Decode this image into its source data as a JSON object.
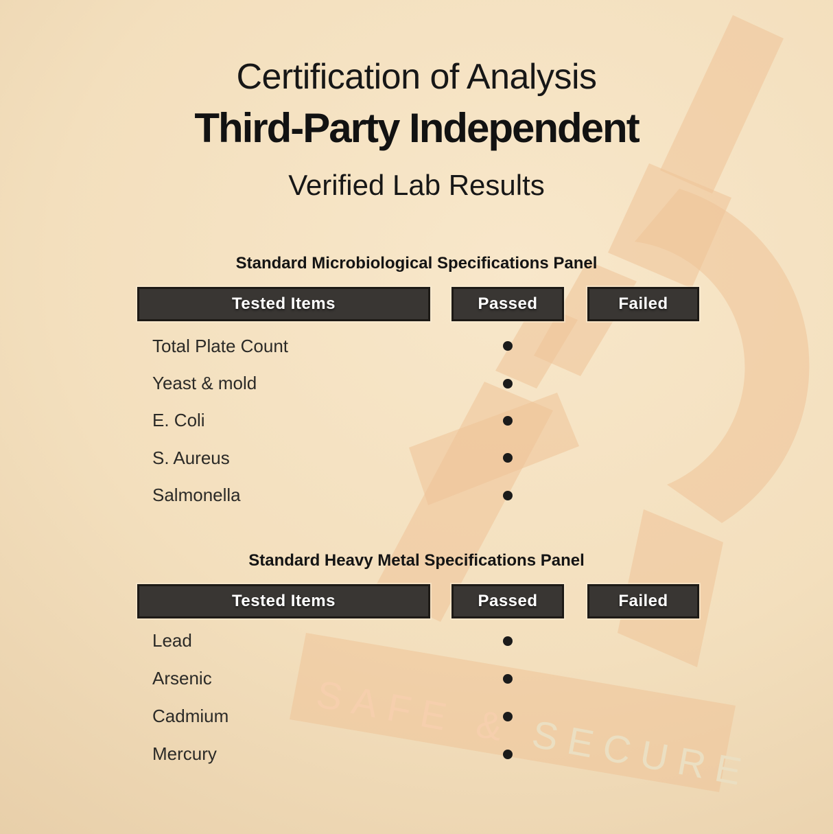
{
  "header": {
    "title": "Certification of Analysis",
    "subtitle": "Third-Party Independent",
    "tagline": "Verified Lab Results"
  },
  "tables": [
    {
      "section_title": "Standard Microbiological Specifications Panel",
      "columns": [
        "Tested Items",
        "Passed",
        "Failed"
      ],
      "rows": [
        {
          "item": "Total Plate Count",
          "passed": true,
          "failed": false
        },
        {
          "item": "Yeast & mold",
          "passed": true,
          "failed": false
        },
        {
          "item": "E. Coli",
          "passed": true,
          "failed": false
        },
        {
          "item": "S. Aureus",
          "passed": true,
          "failed": false
        },
        {
          "item": "Salmonella",
          "passed": true,
          "failed": false
        }
      ]
    },
    {
      "section_title": "Standard Heavy Metal Specifications Panel",
      "columns": [
        "Tested Items",
        "Passed",
        "Failed"
      ],
      "rows": [
        {
          "item": "Lead",
          "passed": true,
          "failed": false
        },
        {
          "item": "Arsenic",
          "passed": true,
          "failed": false
        },
        {
          "item": "Cadmium",
          "passed": true,
          "failed": false
        },
        {
          "item": "Mercury",
          "passed": true,
          "failed": false
        }
      ]
    }
  ],
  "watermark": {
    "icon": "microscope",
    "text_part1": "SAFE & ",
    "text_part2": "SECURE"
  },
  "colors": {
    "background_light": "#f8e7ca",
    "background_dark": "#dbbe96",
    "header_box": "#393633",
    "header_box_border": "#1d1a16",
    "header_text": "#ffffff",
    "body_text": "#2b2a27",
    "title_text": "#171717",
    "bullet": "#1b1b1b",
    "watermark": "#efc398"
  }
}
